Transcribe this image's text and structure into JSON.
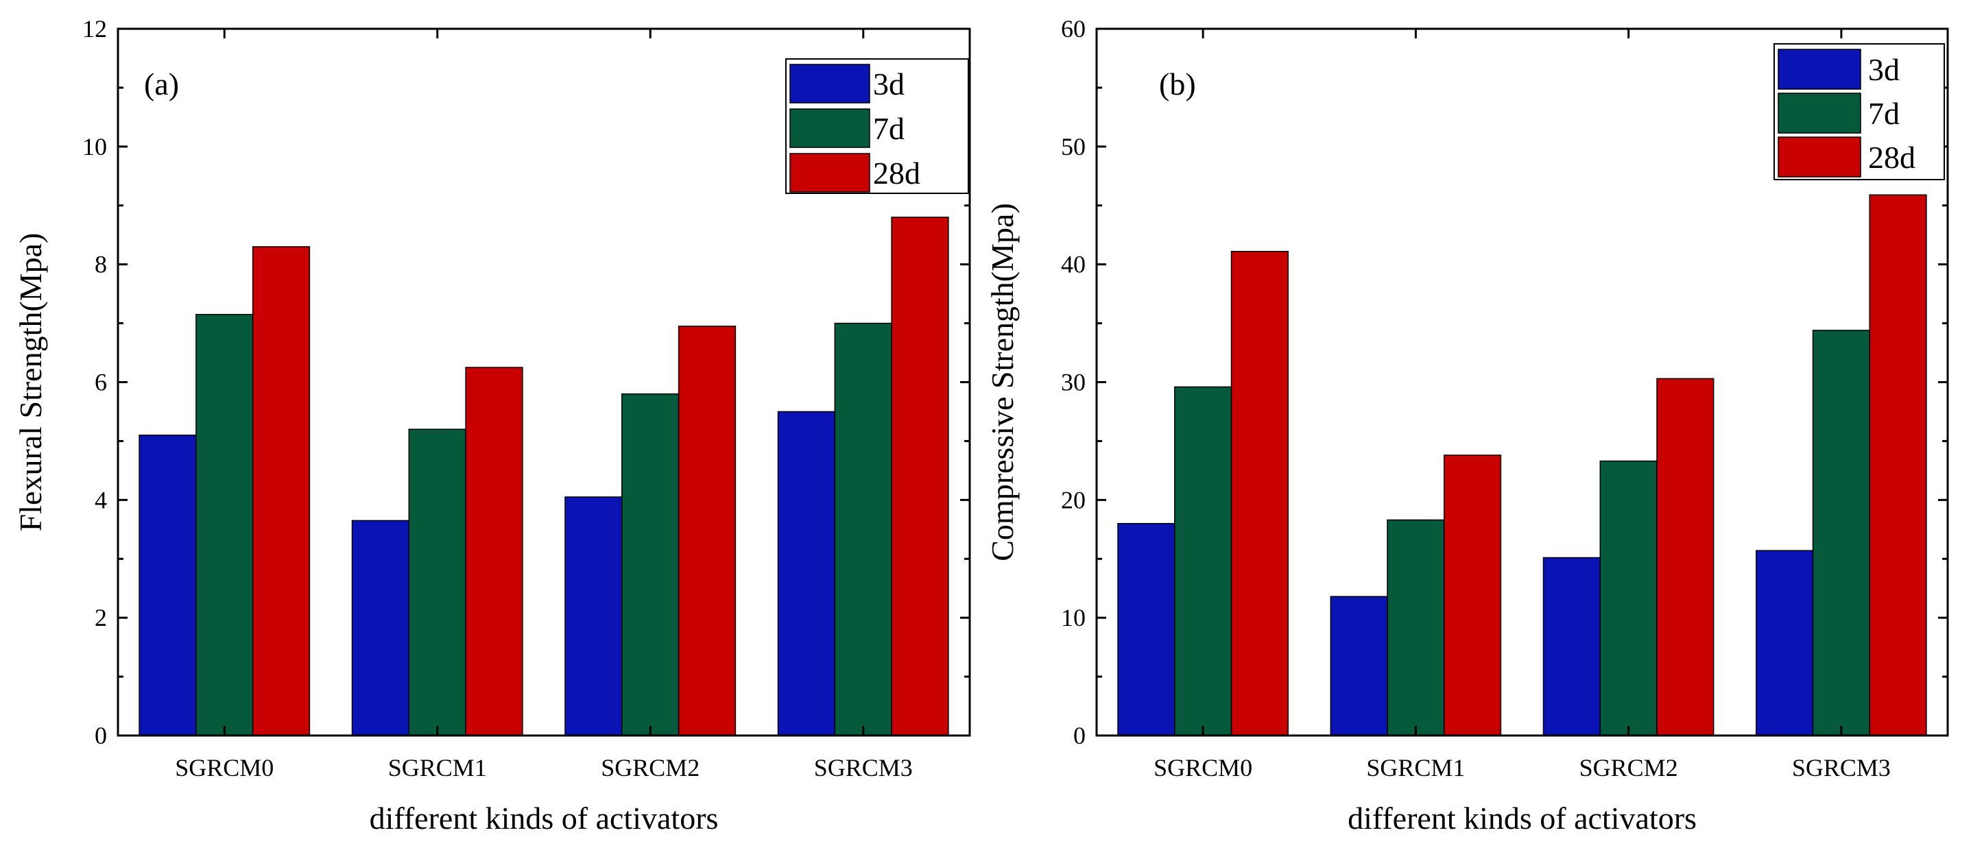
{
  "chart_data": [
    {
      "type": "bar",
      "panel_label": "(a)",
      "categories": [
        "SGRCM0",
        "SGRCM1",
        "SGRCM2",
        "SGRCM3"
      ],
      "series": [
        {
          "name": "3d",
          "color": "#0A14B4",
          "values": [
            5.1,
            3.65,
            4.05,
            5.5
          ]
        },
        {
          "name": "7d",
          "color": "#055A3C",
          "values": [
            7.15,
            5.2,
            5.8,
            7.0
          ]
        },
        {
          "name": "28d",
          "color": "#C80000",
          "values": [
            8.3,
            6.25,
            6.95,
            8.8
          ]
        }
      ],
      "xlabel": "different kinds of activators",
      "ylabel": "Flexural Strength(Mpa)",
      "ylim": [
        0,
        12
      ],
      "yticks": [
        "0",
        "2",
        "4",
        "6",
        "8",
        "10",
        "12"
      ],
      "legend_position": "top-right",
      "grid": false
    },
    {
      "type": "bar",
      "panel_label": "(b)",
      "categories": [
        "SGRCM0",
        "SGRCM1",
        "SGRCM2",
        "SGRCM3"
      ],
      "series": [
        {
          "name": "3d",
          "color": "#0A14B4",
          "values": [
            18.0,
            11.8,
            15.1,
            15.7
          ]
        },
        {
          "name": "7d",
          "color": "#055A3C",
          "values": [
            29.6,
            18.3,
            23.3,
            34.4
          ]
        },
        {
          "name": "28d",
          "color": "#C80000",
          "values": [
            41.1,
            23.8,
            30.3,
            45.9
          ]
        }
      ],
      "xlabel": "different kinds of activators",
      "ylabel": "Compressive Strength(Mpa)",
      "ylim": [
        0,
        60
      ],
      "yticks": [
        "0",
        "10",
        "20",
        "30",
        "40",
        "50",
        "60"
      ],
      "legend_position": "top-right",
      "grid": false
    }
  ]
}
